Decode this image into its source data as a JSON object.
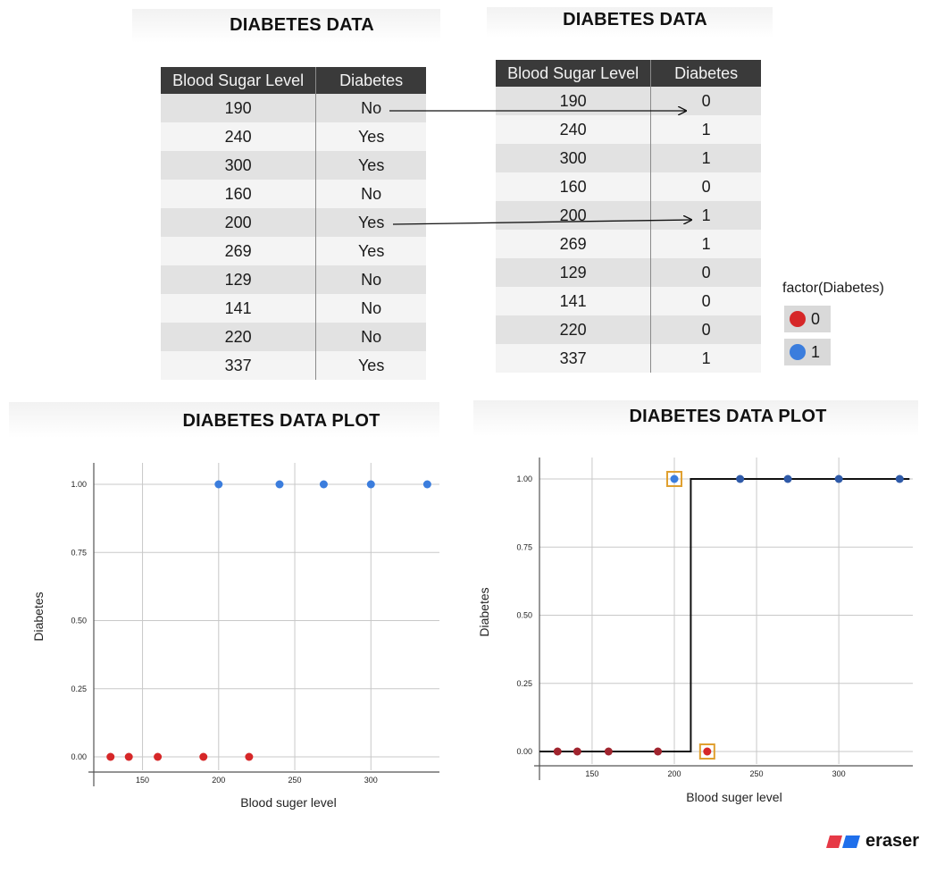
{
  "left_table": {
    "title": "DIABETES DATA",
    "headers": [
      "Blood Sugar Level",
      "Diabetes"
    ],
    "rows": [
      [
        "190",
        "No"
      ],
      [
        "240",
        "Yes"
      ],
      [
        "300",
        "Yes"
      ],
      [
        "160",
        "No"
      ],
      [
        "200",
        "Yes"
      ],
      [
        "269",
        "Yes"
      ],
      [
        "129",
        "No"
      ],
      [
        "141",
        "No"
      ],
      [
        "220",
        "No"
      ],
      [
        "337",
        "Yes"
      ]
    ]
  },
  "right_table": {
    "title": "DIABETES DATA",
    "headers": [
      "Blood Sugar Level",
      "Diabetes"
    ],
    "rows": [
      [
        "190",
        "0"
      ],
      [
        "240",
        "1"
      ],
      [
        "300",
        "1"
      ],
      [
        "160",
        "0"
      ],
      [
        "200",
        "1"
      ],
      [
        "269",
        "1"
      ],
      [
        "129",
        "0"
      ],
      [
        "141",
        "0"
      ],
      [
        "220",
        "0"
      ],
      [
        "337",
        "1"
      ]
    ]
  },
  "legend": {
    "title": "factor(Diabetes)",
    "items": [
      {
        "label": "0",
        "color": "#d62728"
      },
      {
        "label": "1",
        "color": "#3b7ddd"
      }
    ]
  },
  "colors": {
    "class_0": "#d62728",
    "class_1": "#3b7ddd",
    "highlight": "#e0a030",
    "class_0_dark": "#a0242e",
    "class_1_dark": "#2f5aa8"
  },
  "brand": {
    "text": "eraser",
    "colors": [
      "#e63946",
      "#1f6feb"
    ]
  },
  "chart_data": [
    {
      "type": "scatter",
      "title": "DIABETES DATA PLOT",
      "xlabel": "Blood suger level",
      "ylabel": "Diabetes",
      "xlim": [
        118,
        345
      ],
      "ylim": [
        -0.05,
        1.08
      ],
      "xticks": [
        150,
        200,
        250,
        300
      ],
      "xtick_labels": [
        "150",
        "200",
        "250",
        "300"
      ],
      "yticks": [
        0,
        0.25,
        0.5,
        0.75,
        1
      ],
      "ytick_labels": [
        "0.00",
        "0.25",
        "0.50",
        "0.75",
        "1.00"
      ],
      "grid": true,
      "points": [
        {
          "x": 129,
          "y": 0
        },
        {
          "x": 141,
          "y": 0
        },
        {
          "x": 160,
          "y": 0
        },
        {
          "x": 190,
          "y": 0
        },
        {
          "x": 220,
          "y": 0
        },
        {
          "x": 200,
          "y": 1
        },
        {
          "x": 240,
          "y": 1
        },
        {
          "x": 269,
          "y": 1
        },
        {
          "x": 300,
          "y": 1
        },
        {
          "x": 337,
          "y": 1
        }
      ]
    },
    {
      "type": "scatter",
      "title": "DIABETES DATA PLOT",
      "xlabel": "Blood suger level",
      "ylabel": "Diabetes",
      "xlim": [
        118,
        345
      ],
      "ylim": [
        -0.05,
        1.08
      ],
      "xticks": [
        150,
        200,
        250,
        300
      ],
      "xtick_labels": [
        "150",
        "200",
        "250",
        "300"
      ],
      "yticks": [
        0,
        0.25,
        0.5,
        0.75,
        1
      ],
      "ytick_labels": [
        "0.00",
        "0.25",
        "0.50",
        "0.75",
        "1.00"
      ],
      "grid": true,
      "points": [
        {
          "x": 129,
          "y": 0
        },
        {
          "x": 141,
          "y": 0
        },
        {
          "x": 160,
          "y": 0
        },
        {
          "x": 190,
          "y": 0
        },
        {
          "x": 220,
          "y": 0,
          "highlight": true
        },
        {
          "x": 200,
          "y": 1,
          "highlight": true
        },
        {
          "x": 240,
          "y": 1
        },
        {
          "x": 269,
          "y": 1
        },
        {
          "x": 300,
          "y": 1
        },
        {
          "x": 337,
          "y": 1
        }
      ],
      "step_threshold": 210
    }
  ]
}
